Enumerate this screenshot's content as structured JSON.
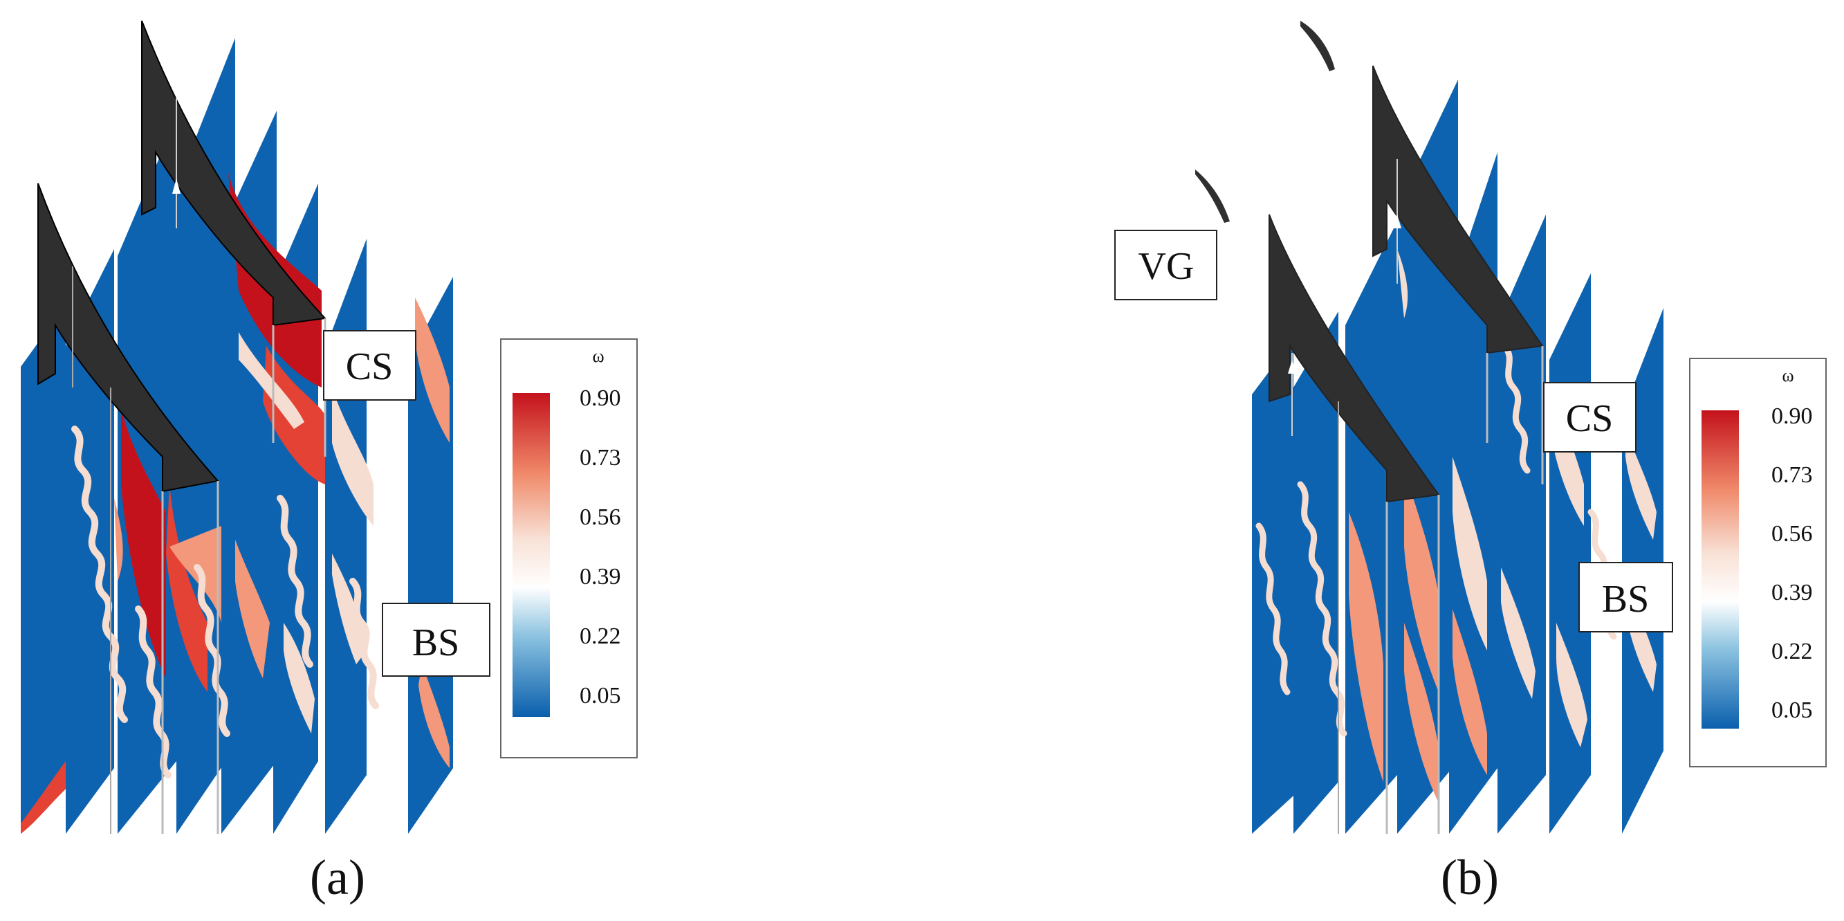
{
  "panels": [
    {
      "id": "a",
      "caption": "(a)",
      "labels": {
        "vg": "",
        "cs": "CS",
        "bs": "BS"
      },
      "colorbar": {
        "symbol": "ω",
        "ticks": [
          "0.90",
          "0.73",
          "0.56",
          "0.39",
          "0.22",
          "0.05"
        ]
      }
    },
    {
      "id": "b",
      "caption": "(b)",
      "labels": {
        "vg": "VG",
        "cs": "CS",
        "bs": "BS"
      },
      "colorbar": {
        "symbol": "ω",
        "ticks": [
          "0.90",
          "0.73",
          "0.56",
          "0.39",
          "0.22",
          "0.05"
        ]
      }
    }
  ],
  "colors": {
    "field_low": "#0e63b0",
    "field_mid": "#f6ddd2",
    "field_warm": "#f3987a",
    "field_high": "#c4121c",
    "blade": "#2f2f2f"
  }
}
